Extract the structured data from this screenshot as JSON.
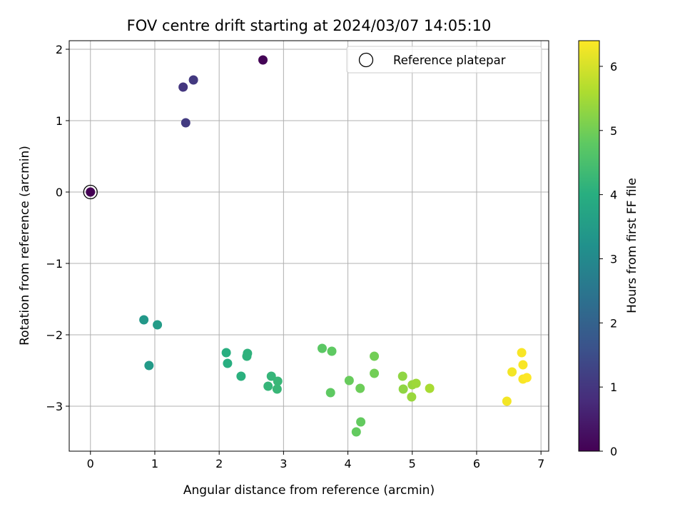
{
  "chart_data": {
    "type": "scatter",
    "title": "FOV centre drift starting at 2024/03/07 14:05:10",
    "xlabel": "Angular distance from reference (arcmin)",
    "ylabel": "Rotation from reference (arcmin)",
    "xlim": [
      -0.33,
      7.12
    ],
    "ylim": [
      -3.63,
      2.12
    ],
    "xticks": [
      0,
      1,
      2,
      3,
      4,
      5,
      6,
      7
    ],
    "yticks": [
      -3,
      -2,
      -1,
      0,
      1,
      2
    ],
    "xtick_labels": [
      "0",
      "1",
      "2",
      "3",
      "4",
      "5",
      "6",
      "7"
    ],
    "ytick_labels": [
      "−3",
      "−2",
      "−1",
      "0",
      "1",
      "2"
    ],
    "grid": true,
    "colormap": "viridis",
    "colorbar": {
      "label": "Hours from first FF file",
      "range": [
        0,
        6.4
      ],
      "ticks": [
        0,
        1,
        2,
        3,
        4,
        5,
        6
      ],
      "tick_labels": [
        "0",
        "1",
        "2",
        "3",
        "4",
        "5",
        "6"
      ]
    },
    "legend": {
      "position": "top-right",
      "entries": [
        "Reference platepar"
      ]
    },
    "reference_point": {
      "x": 0,
      "y": 0
    },
    "points": [
      {
        "x": 0.0,
        "y": 0.0,
        "c": 0.0
      },
      {
        "x": 2.68,
        "y": 1.85,
        "c": 0.05
      },
      {
        "x": 1.44,
        "y": 1.47,
        "c": 1.0
      },
      {
        "x": 1.6,
        "y": 1.57,
        "c": 1.05
      },
      {
        "x": 1.48,
        "y": 0.97,
        "c": 1.1
      },
      {
        "x": 0.83,
        "y": -1.79,
        "c": 3.4
      },
      {
        "x": 1.04,
        "y": -1.86,
        "c": 3.5
      },
      {
        "x": 0.91,
        "y": -2.43,
        "c": 3.45
      },
      {
        "x": 2.11,
        "y": -2.25,
        "c": 4.0
      },
      {
        "x": 2.13,
        "y": -2.4,
        "c": 4.0
      },
      {
        "x": 2.44,
        "y": -2.26,
        "c": 4.1
      },
      {
        "x": 2.43,
        "y": -2.3,
        "c": 4.1
      },
      {
        "x": 2.34,
        "y": -2.58,
        "c": 4.05
      },
      {
        "x": 2.81,
        "y": -2.58,
        "c": 4.2
      },
      {
        "x": 2.76,
        "y": -2.72,
        "c": 4.2
      },
      {
        "x": 2.91,
        "y": -2.65,
        "c": 4.25
      },
      {
        "x": 2.9,
        "y": -2.76,
        "c": 4.25
      },
      {
        "x": 3.6,
        "y": -2.19,
        "c": 4.75
      },
      {
        "x": 3.75,
        "y": -2.23,
        "c": 4.8
      },
      {
        "x": 3.73,
        "y": -2.81,
        "c": 4.8
      },
      {
        "x": 4.02,
        "y": -2.64,
        "c": 4.9
      },
      {
        "x": 4.19,
        "y": -2.75,
        "c": 4.95
      },
      {
        "x": 4.41,
        "y": -2.3,
        "c": 5.0
      },
      {
        "x": 4.41,
        "y": -2.54,
        "c": 5.0
      },
      {
        "x": 4.13,
        "y": -3.36,
        "c": 4.85
      },
      {
        "x": 4.2,
        "y": -3.22,
        "c": 4.85
      },
      {
        "x": 4.85,
        "y": -2.58,
        "c": 5.3
      },
      {
        "x": 4.86,
        "y": -2.76,
        "c": 5.3
      },
      {
        "x": 5.0,
        "y": -2.7,
        "c": 5.4
      },
      {
        "x": 5.06,
        "y": -2.68,
        "c": 5.45
      },
      {
        "x": 4.99,
        "y": -2.87,
        "c": 5.4
      },
      {
        "x": 5.27,
        "y": -2.75,
        "c": 5.55
      },
      {
        "x": 6.47,
        "y": -2.93,
        "c": 6.3
      },
      {
        "x": 6.55,
        "y": -2.52,
        "c": 6.3
      },
      {
        "x": 6.7,
        "y": -2.25,
        "c": 6.35
      },
      {
        "x": 6.72,
        "y": -2.42,
        "c": 6.35
      },
      {
        "x": 6.72,
        "y": -2.62,
        "c": 6.35
      },
      {
        "x": 6.78,
        "y": -2.6,
        "c": 6.4
      }
    ]
  }
}
